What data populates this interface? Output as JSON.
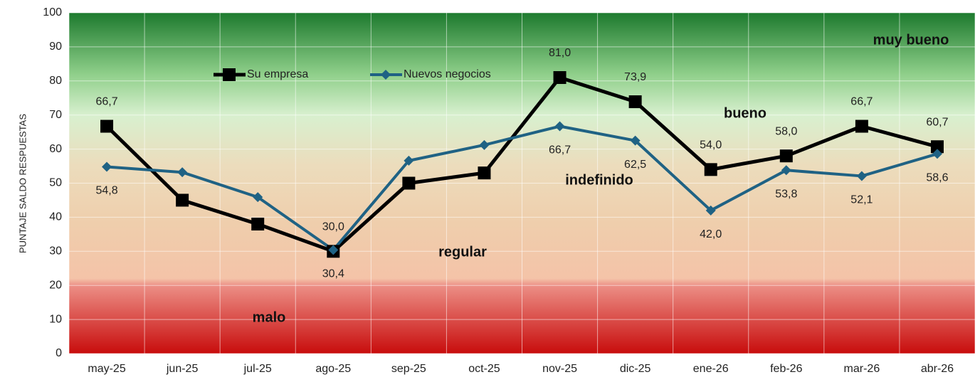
{
  "chart_data": {
    "type": "line",
    "y_label": "PUNTAJE SALDO RESPUESTAS",
    "categories": [
      "may-25",
      "jun-25",
      "jul-25",
      "ago-25",
      "sep-25",
      "oct-25",
      "nov-25",
      "dic-25",
      "ene-26",
      "feb-26",
      "mar-26",
      "abr-26"
    ],
    "series": [
      {
        "name": "Su empresa",
        "color": "#000000",
        "marker": "square",
        "values": [
          66.7,
          45,
          38,
          30.0,
          50,
          53,
          81.0,
          73.9,
          54.0,
          58.0,
          66.7,
          60.7
        ],
        "value_labels": [
          "66,7",
          null,
          null,
          "30,0",
          null,
          null,
          "81,0",
          "73,9",
          "54,0",
          "58,0",
          "66,7",
          "60,7"
        ]
      },
      {
        "name": "Nuevos negocios",
        "color": "#1f6284",
        "marker": "diamond",
        "values": [
          54.8,
          53.2,
          45.9,
          30.4,
          56.6,
          61.2,
          66.7,
          62.5,
          42.0,
          53.8,
          52.1,
          58.6
        ],
        "value_labels": [
          "54,8",
          null,
          null,
          "30,4",
          null,
          null,
          "66,7",
          "62,5",
          "42,0",
          "53,8",
          "52,1",
          "58,6"
        ]
      }
    ],
    "annotations": [
      "muy bueno",
      "bueno",
      "indefinido",
      "regular",
      "malo"
    ],
    "ylim": [
      0,
      100
    ],
    "yticks": [
      0,
      10,
      20,
      30,
      40,
      50,
      60,
      70,
      80,
      90,
      100
    ],
    "grid": true
  }
}
